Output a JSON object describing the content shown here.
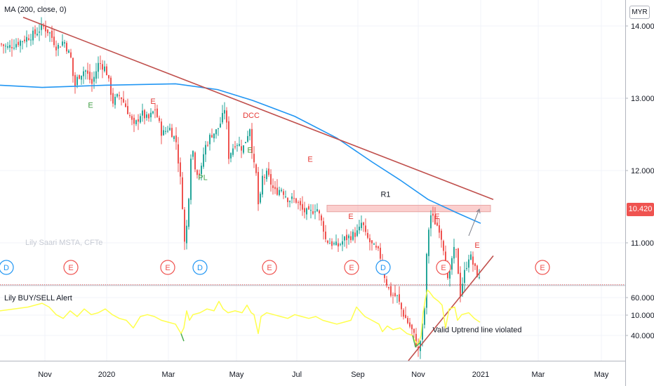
{
  "main_indicator": "MA (200, close, 0)",
  "currency": "MYR",
  "last_price_label": "10.420",
  "osc_title": "Lily BUY/SELL Alert",
  "watermark": "Lily Saari  MSTA, CFTe",
  "colors": {
    "up": "#26a69a",
    "down": "#ef5350",
    "ma": "#2196f3",
    "oscillator": "#ffff4d",
    "oscillator_buy": "#4caf50",
    "trendline": "#c0504d"
  },
  "chart_data": [
    {
      "type": "candlestick",
      "title": "",
      "x_axis_labels": [
        "Nov",
        "2020",
        "Mar",
        "May",
        "Jul",
        "Sep",
        "Nov",
        "2021",
        "Mar",
        "May"
      ],
      "y_ticks": [
        "14.000",
        "13.000",
        "12.000",
        "11.000",
        "10.000"
      ],
      "ylim": [
        9.1,
        14.45
      ],
      "close_path": [
        [
          0,
          13.75
        ],
        [
          10,
          13.7
        ],
        [
          20,
          13.75
        ],
        [
          30,
          13.8
        ],
        [
          40,
          13.85
        ],
        [
          50,
          13.9
        ],
        [
          60,
          14.0
        ],
        [
          70,
          13.9
        ],
        [
          80,
          13.7
        ],
        [
          90,
          13.8
        ],
        [
          100,
          13.55
        ],
        [
          105,
          13.15
        ],
        [
          110,
          13.3
        ],
        [
          120,
          13.4
        ],
        [
          130,
          13.2
        ],
        [
          140,
          13.5
        ],
        [
          150,
          13.4
        ],
        [
          160,
          12.95
        ],
        [
          170,
          13.05
        ],
        [
          180,
          12.85
        ],
        [
          190,
          12.6
        ],
        [
          200,
          12.8
        ],
        [
          210,
          12.7
        ],
        [
          220,
          12.85
        ],
        [
          230,
          12.5
        ],
        [
          240,
          12.6
        ],
        [
          250,
          12.4
        ],
        [
          258,
          11.7
        ],
        [
          262,
          11.0
        ],
        [
          266,
          11.3
        ],
        [
          272,
          12.4
        ],
        [
          278,
          12.0
        ],
        [
          285,
          11.95
        ],
        [
          290,
          12.3
        ],
        [
          300,
          12.5
        ],
        [
          308,
          12.55
        ],
        [
          315,
          12.7
        ],
        [
          320,
          12.9
        ],
        [
          325,
          12.2
        ],
        [
          335,
          12.4
        ],
        [
          345,
          12.3
        ],
        [
          355,
          12.6
        ],
        [
          360,
          12.1
        ],
        [
          365,
          11.9
        ],
        [
          368,
          11.35
        ],
        [
          372,
          11.9
        ],
        [
          380,
          11.95
        ],
        [
          390,
          11.7
        ],
        [
          400,
          11.75
        ],
        [
          410,
          11.6
        ],
        [
          420,
          11.6
        ],
        [
          430,
          11.45
        ],
        [
          440,
          11.4
        ],
        [
          450,
          11.5
        ],
        [
          460,
          11.2
        ],
        [
          462,
          11.05
        ],
        [
          470,
          11.0
        ],
        [
          480,
          10.95
        ],
        [
          490,
          11.05
        ],
        [
          500,
          11.1
        ],
        [
          510,
          11.15
        ],
        [
          515,
          11.3
        ],
        [
          520,
          11.1
        ],
        [
          530,
          10.95
        ],
        [
          540,
          10.85
        ],
        [
          548,
          10.5
        ],
        [
          555,
          10.3
        ],
        [
          565,
          10.25
        ],
        [
          572,
          10.05
        ],
        [
          580,
          9.9
        ],
        [
          588,
          9.75
        ],
        [
          595,
          9.5
        ],
        [
          600,
          9.75
        ],
        [
          604,
          10.1
        ],
        [
          607,
          10.8
        ],
        [
          610,
          11.2
        ],
        [
          612,
          11.4
        ],
        [
          618,
          11.3
        ],
        [
          625,
          11.2
        ],
        [
          630,
          11.0
        ],
        [
          635,
          10.7
        ],
        [
          638,
          10.35
        ],
        [
          642,
          10.75
        ],
        [
          648,
          10.95
        ],
        [
          652,
          10.6
        ],
        [
          655,
          10.3
        ],
        [
          660,
          10.55
        ],
        [
          668,
          10.85
        ],
        [
          675,
          10.65
        ],
        [
          680,
          10.55
        ],
        [
          684,
          10.42
        ]
      ],
      "ma200_path": [
        [
          0,
          13.18
        ],
        [
          60,
          13.15
        ],
        [
          150,
          13.18
        ],
        [
          250,
          13.2
        ],
        [
          310,
          13.12
        ],
        [
          360,
          12.97
        ],
        [
          420,
          12.75
        ],
        [
          480,
          12.45
        ],
        [
          530,
          12.12
        ],
        [
          570,
          11.87
        ],
        [
          610,
          11.6
        ],
        [
          650,
          11.42
        ],
        [
          685,
          11.27
        ]
      ],
      "trendlines": [
        {
          "from": [
            33,
            14.12
          ],
          "to": [
            703,
            11.6
          ]
        },
        {
          "from": [
            582,
            9.37
          ],
          "to": [
            703,
            10.82
          ]
        }
      ],
      "resistance_zone": {
        "label": "R1",
        "x_range": [
          466,
          699
        ],
        "y_range": [
          11.43,
          11.52
        ]
      },
      "event_labels": [
        {
          "text": "E",
          "x": 129,
          "price": 12.87,
          "color": "green"
        },
        {
          "text": "E",
          "x": 218,
          "price": 12.92,
          "color": "red"
        },
        {
          "text": "PL",
          "x": 289,
          "price": 11.87,
          "color": "green"
        },
        {
          "text": "DCC",
          "x": 358,
          "price": 12.73,
          "color": "red"
        },
        {
          "text": "E",
          "x": 356,
          "price": 12.25,
          "color": "green"
        },
        {
          "text": "E",
          "x": 442,
          "price": 12.12,
          "color": "red"
        },
        {
          "text": "E",
          "x": 500,
          "price": 11.33,
          "color": "red"
        },
        {
          "text": "E",
          "x": 623,
          "price": 11.33,
          "color": "red"
        },
        {
          "text": "E",
          "x": 680,
          "price": 10.93,
          "color": "red"
        }
      ],
      "annotation": {
        "text": "Valid Uptrend line violated",
        "x": 680,
        "price": 9.76
      },
      "event_markers": [
        {
          "text": "D",
          "x": 9,
          "kind": "dividend"
        },
        {
          "text": "E",
          "x": 101,
          "kind": "earnings"
        },
        {
          "text": "E",
          "x": 239,
          "kind": "earnings"
        },
        {
          "text": "D",
          "x": 285,
          "kind": "dividend"
        },
        {
          "text": "E",
          "x": 384,
          "kind": "earnings"
        },
        {
          "text": "E",
          "x": 501,
          "kind": "earnings"
        },
        {
          "text": "D",
          "x": 546,
          "kind": "dividend"
        },
        {
          "text": "E",
          "x": 632,
          "kind": "earnings"
        },
        {
          "text": "E",
          "x": 773,
          "kind": "earnings"
        }
      ],
      "last_price": 10.42
    },
    {
      "type": "line",
      "title": "Lily BUY/SELL Alert",
      "y_ticks": [
        "60.000",
        "40.000"
      ],
      "ylim": [
        32,
        68
      ],
      "series": [
        {
          "style": "main",
          "values": [
            [
              0,
              53
            ],
            [
              20,
              54
            ],
            [
              40,
              55
            ],
            [
              60,
              57
            ],
            [
              70,
              55
            ],
            [
              80,
              51
            ],
            [
              90,
              49
            ],
            [
              100,
              53
            ],
            [
              110,
              50
            ],
            [
              120,
              54
            ],
            [
              130,
              51
            ],
            [
              140,
              52
            ],
            [
              150,
              54
            ],
            [
              160,
              51
            ],
            [
              170,
              49
            ],
            [
              180,
              48
            ],
            [
              190,
              44
            ],
            [
              200,
              50
            ],
            [
              210,
              51
            ],
            [
              220,
              50
            ],
            [
              230,
              48
            ],
            [
              240,
              47
            ],
            [
              250,
              46
            ],
            [
              258,
              41
            ],
            [
              262,
              44
            ],
            [
              266,
              53
            ],
            [
              270,
              48
            ],
            [
              275,
              51
            ],
            [
              285,
              52
            ],
            [
              295,
              54
            ],
            [
              305,
              53
            ],
            [
              312,
              58
            ],
            [
              318,
              54
            ],
            [
              325,
              52
            ],
            [
              335,
              53
            ],
            [
              345,
              52
            ],
            [
              352,
              56
            ],
            [
              358,
              52
            ],
            [
              362,
              51
            ],
            [
              368,
              41
            ],
            [
              372,
              50
            ],
            [
              380,
              52
            ],
            [
              390,
              51
            ],
            [
              400,
              50
            ],
            [
              410,
              49
            ],
            [
              420,
              51
            ],
            [
              430,
              50
            ],
            [
              440,
              49
            ],
            [
              450,
              50
            ],
            [
              460,
              48
            ],
            [
              470,
              47
            ],
            [
              480,
              46
            ],
            [
              490,
              47
            ],
            [
              500,
              48
            ],
            [
              508,
              55
            ],
            [
              515,
              52
            ],
            [
              520,
              50
            ],
            [
              530,
              48
            ],
            [
              540,
              46
            ],
            [
              545,
              42
            ],
            [
              552,
              45
            ],
            [
              560,
              43
            ],
            [
              570,
              44
            ],
            [
              580,
              41
            ],
            [
              588,
              40
            ],
            [
              590,
              38
            ],
            [
              596,
              35
            ],
            [
              600,
              40
            ],
            [
              603,
              52
            ],
            [
              606,
              59
            ],
            [
              609,
              64
            ],
            [
              612,
              63
            ],
            [
              618,
              60
            ],
            [
              625,
              58
            ],
            [
              630,
              56
            ],
            [
              635,
              44
            ],
            [
              640,
              54
            ],
            [
              648,
              55
            ],
            [
              652,
              48
            ],
            [
              658,
              51
            ],
            [
              668,
              52
            ],
            [
              676,
              49
            ],
            [
              684,
              47
            ]
          ]
        },
        {
          "style": "buy",
          "values": [
            [
              258,
              41
            ],
            [
              262,
              37
            ]
          ]
        },
        {
          "style": "buy",
          "values": [
            [
              588,
              40
            ],
            [
              592,
              34
            ],
            [
              598,
              36
            ]
          ]
        }
      ]
    }
  ]
}
